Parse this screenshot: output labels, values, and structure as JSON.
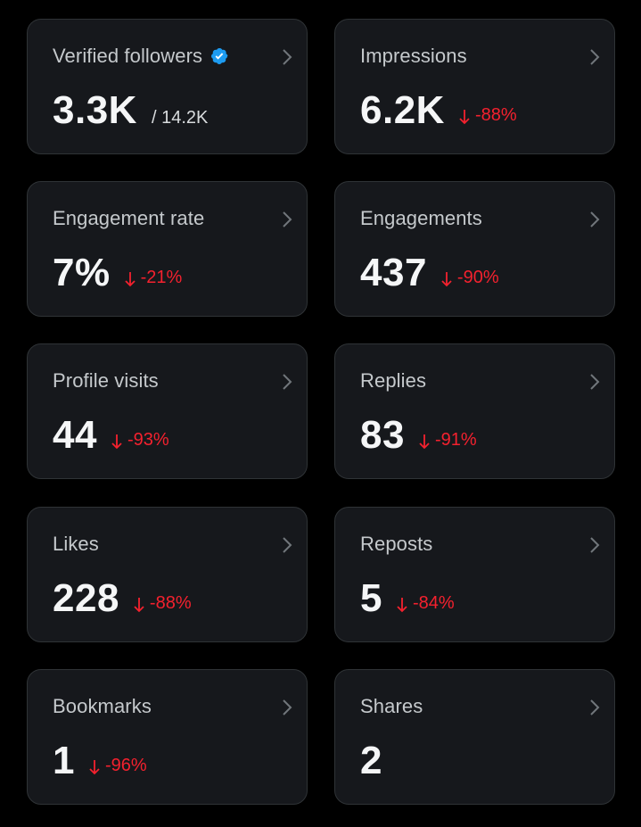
{
  "colors": {
    "background": "#000000",
    "card": "#16181c",
    "negative": "#f4212e",
    "verified": "#1d9bf0"
  },
  "cards": [
    {
      "key": "verified-followers",
      "title": "Verified followers",
      "verified": true,
      "value": "3.3K",
      "sub_value": "/ 14.2K",
      "change": ""
    },
    {
      "key": "impressions",
      "title": "Impressions",
      "value": "6.2K",
      "change": "-88%"
    },
    {
      "key": "engagement-rate",
      "title": "Engagement rate",
      "value": "7%",
      "change": "-21%"
    },
    {
      "key": "engagements",
      "title": "Engagements",
      "value": "437",
      "change": "-90%"
    },
    {
      "key": "profile-visits",
      "title": "Profile visits",
      "value": "44",
      "change": "-93%"
    },
    {
      "key": "replies",
      "title": "Replies",
      "value": "83",
      "change": "-91%"
    },
    {
      "key": "likes",
      "title": "Likes",
      "value": "228",
      "change": "-88%"
    },
    {
      "key": "reposts",
      "title": "Reposts",
      "value": "5",
      "change": "-84%"
    },
    {
      "key": "bookmarks",
      "title": "Bookmarks",
      "value": "1",
      "change": "-96%"
    },
    {
      "key": "shares",
      "title": "Shares",
      "value": "2",
      "change": ""
    }
  ]
}
